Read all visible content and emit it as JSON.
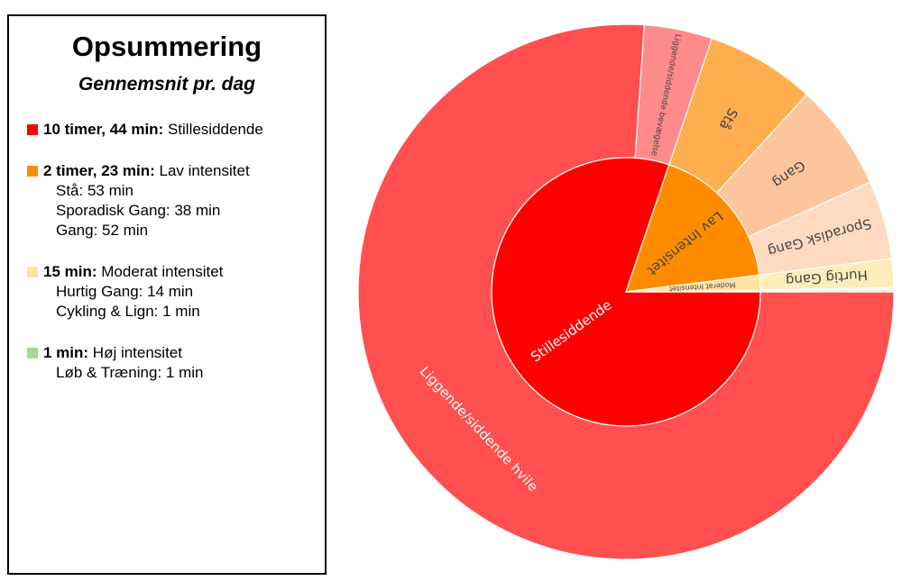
{
  "summary": {
    "title": "Opsummering",
    "subtitle": "Gennemsnit pr. dag",
    "groups": [
      {
        "color": "#ff0000",
        "duration": "10 timer, 44 min:",
        "label": "Stillesiddende",
        "items": []
      },
      {
        "color": "#ff8c00",
        "duration": "2 timer, 23 min:",
        "label": "Lav intensitet",
        "items": [
          "Stå: 53 min",
          "Sporadisk Gang: 38 min",
          "Gang: 52 min"
        ]
      },
      {
        "color": "#fde4a4",
        "duration": "15 min:",
        "label": "Moderat intensitet",
        "items": [
          "Hurtig Gang: 14 min",
          "Cykling & Lign: 1 min"
        ]
      },
      {
        "color": "#a8d59a",
        "duration": "1 min:",
        "label": "Høj intensitet",
        "items": [
          "Løb & Træning: 1 min"
        ]
      }
    ]
  },
  "chart_data": {
    "type": "sunburst",
    "unit": "min",
    "inner": [
      {
        "label": "Stillesiddende",
        "value": 644,
        "color": "#ff0000",
        "text_color": "#ffffff"
      },
      {
        "label": "Lav Intensitet",
        "value": 143,
        "color": "#ff8c00",
        "text_color": "#444444"
      },
      {
        "label": "Moderat Intensitet",
        "value": 15,
        "color": "#fde4a4",
        "text_color": "#444444"
      },
      {
        "label": "",
        "value": 1,
        "color": "#a8d59a",
        "text_color": "#444444"
      }
    ],
    "outer": [
      {
        "label": "Liggende/siddende hvile",
        "value": 611,
        "parent": 0,
        "color": "#ff4f4f",
        "text_color": "#ffffff"
      },
      {
        "label": "Liggende/siddende bevægelse",
        "value": 33,
        "parent": 0,
        "color": "#ff8a8a",
        "text_color": "#444444"
      },
      {
        "label": "Stå",
        "value": 53,
        "parent": 1,
        "color": "#ffae4f",
        "text_color": "#444444"
      },
      {
        "label": "Gang",
        "value": 52,
        "parent": 1,
        "color": "#fdc59e",
        "text_color": "#444444"
      },
      {
        "label": "Sporadisk Gang",
        "value": 38,
        "parent": 1,
        "color": "#fedbc0",
        "text_color": "#444444"
      },
      {
        "label": "Hurtig Gang",
        "value": 14,
        "parent": 2,
        "color": "#fdedbb",
        "text_color": "#444444"
      },
      {
        "label": "",
        "value": 1,
        "parent": 2,
        "color": "#fff5dc",
        "text_color": "#444444"
      },
      {
        "label": "",
        "value": 1,
        "parent": 3,
        "color": "#d3ebcb",
        "text_color": "#444444"
      }
    ]
  }
}
